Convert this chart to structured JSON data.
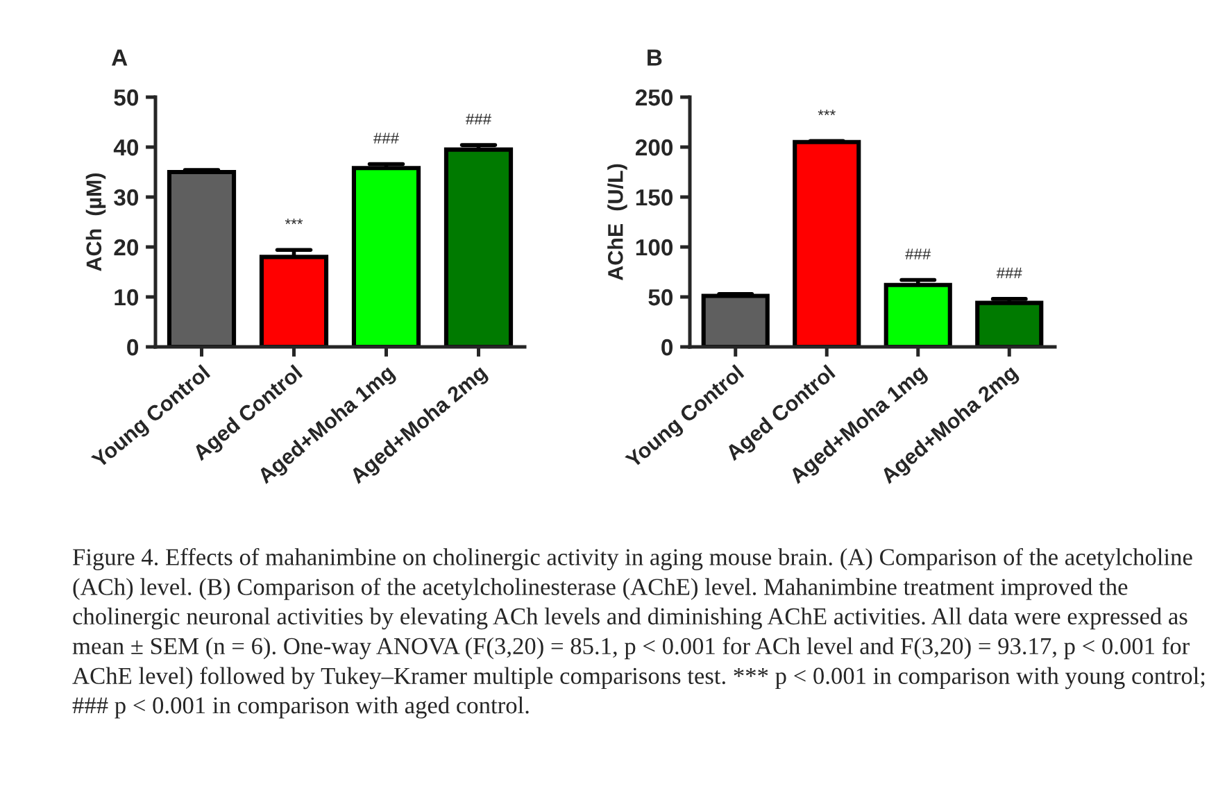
{
  "chart_data": [
    {
      "type": "bar",
      "title": "A",
      "ylabel": "ACh  (µM)",
      "categories": [
        "Young Control",
        "Aged Control",
        "Aged+Moha 1mg",
        "Aged+Moha 2mg"
      ],
      "values": [
        35,
        18,
        35.8,
        39.5
      ],
      "errors": [
        [
          35,
          35.4
        ],
        [
          18,
          19.4
        ],
        [
          35.8,
          36.6
        ],
        [
          39.5,
          40.4
        ]
      ],
      "colors": [
        "#5f5f5f",
        "#ff0000",
        "#00ff00",
        "#007a00"
      ],
      "ylim": [
        0,
        50
      ],
      "yticks": [
        0,
        10,
        20,
        30,
        40,
        50
      ],
      "grid": false,
      "value_labels": [
        null,
        "***",
        "###",
        "###"
      ],
      "annotations": [
        "Figure 4. Effects of mahanimbine on cholinergic activity in aging mouse brain. (A) Comparison of the acetylcholine (ACh) level. (B) Comparison of the acetylcholinesterase (AChE) level. Mahanimbine treatment improved the cholinergic neuronal activities by elevating ACh levels and diminishing AChE activities. All data were expressed as mean ± SEM (n = 6). One-way ANOVA (F(3,20) = 85.1, p < 0.001 for ACh level and F(3,20) = 93.17, p < 0.001 for AChE level) followed by Tukey–Kramer multiple comparisons test. *** p < 0.001 in comparison with young control; ### p < 0.001 in comparison with aged control."
      ]
    },
    {
      "type": "bar",
      "title": "B",
      "ylabel": "AChE  (U/L)",
      "categories": [
        "Young Control",
        "Aged Control",
        "Aged+Moha 1mg",
        "Aged+Moha 2mg"
      ],
      "values": [
        51,
        205,
        62,
        44
      ],
      "errors": [
        [
          51,
          53
        ],
        [
          205,
          206
        ],
        [
          62,
          67
        ],
        [
          44,
          48
        ]
      ],
      "colors": [
        "#5f5f5f",
        "#ff0000",
        "#00ff00",
        "#007a00"
      ],
      "ylim": [
        0,
        250
      ],
      "yticks": [
        0,
        50,
        100,
        150,
        200,
        250
      ],
      "grid": false,
      "value_labels": [
        null,
        "***",
        "###",
        "###"
      ]
    }
  ]
}
